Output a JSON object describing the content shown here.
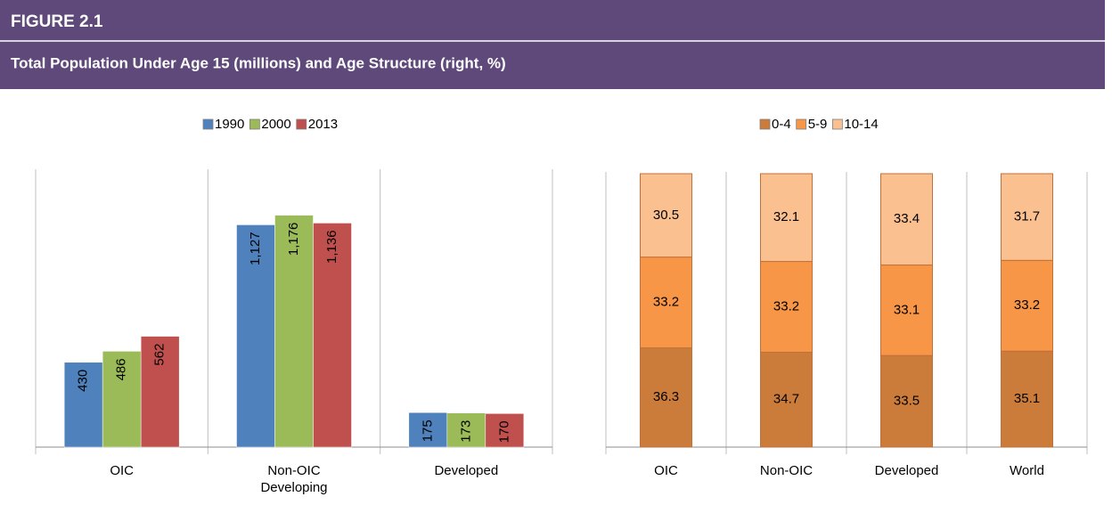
{
  "header": {
    "figure": "FIGURE 2.1",
    "title": "Total Population Under Age 15 (millions) and Age Structure (right, %)"
  },
  "chart_data": [
    {
      "type": "bar",
      "categories": [
        "OIC",
        "Non-OIC Developing",
        "Developed"
      ],
      "ylim": [
        0,
        1400
      ],
      "series": [
        {
          "name": "1990",
          "color": "#4f81bd",
          "values": [
            430,
            1127,
            175
          ],
          "value_labels": [
            "430",
            "1,127",
            "175"
          ]
        },
        {
          "name": "2000",
          "color": "#9bbb59",
          "values": [
            486,
            1176,
            173
          ],
          "value_labels": [
            "486",
            "1,176",
            "173"
          ]
        },
        {
          "name": "2013",
          "color": "#c0504d",
          "values": [
            562,
            1136,
            170
          ],
          "value_labels": [
            "562",
            "1,136",
            "170"
          ]
        }
      ]
    },
    {
      "type": "stacked_bar",
      "categories": [
        "OIC",
        "Non-OIC",
        "Developed",
        "World"
      ],
      "ylim": [
        0,
        100
      ],
      "series": [
        {
          "name": "0-4",
          "color": "#cc7c3a",
          "values": [
            36.3,
            34.7,
            33.5,
            35.1
          ]
        },
        {
          "name": "5-9",
          "color": "#f79646",
          "values": [
            33.2,
            33.2,
            33.1,
            33.2
          ]
        },
        {
          "name": "10-14",
          "color": "#fac090",
          "values": [
            30.5,
            32.1,
            33.4,
            31.7
          ]
        }
      ]
    }
  ]
}
